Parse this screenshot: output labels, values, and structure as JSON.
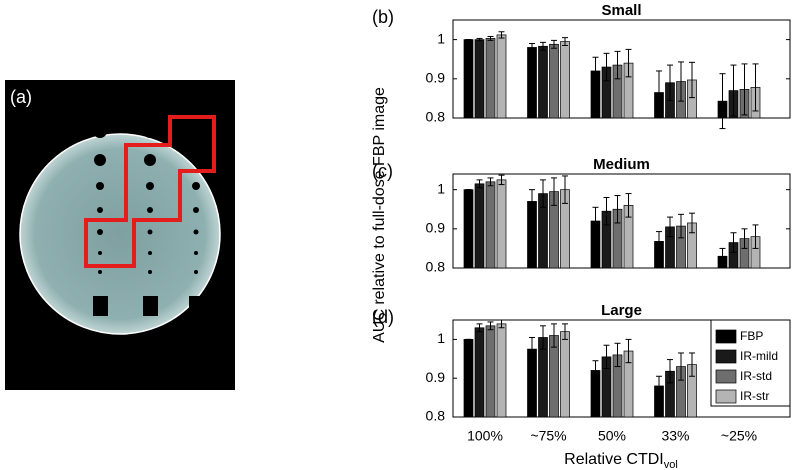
{
  "figure": {
    "panel_a_label": "(a)",
    "ylabel": "AUC relative to full-dose FBP image",
    "xlabel": "Relative CTDI",
    "xlabel_sub": "vol"
  },
  "chart_data": [
    {
      "type": "bar",
      "label": "(b)",
      "title": "Small",
      "categories": [
        null,
        null,
        null,
        null,
        null
      ],
      "ylim": [
        0.8,
        1.05
      ],
      "yticks": [
        0.8,
        0.9,
        1
      ],
      "series": [
        {
          "name": "FBP",
          "color": "#000000",
          "values": [
            1.0,
            0.98,
            0.92,
            0.865,
            0.843
          ],
          "errors": [
            0,
            0.01,
            0.035,
            0.055,
            0.07
          ]
        },
        {
          "name": "IR-mild",
          "color": "#1a1a1a",
          "values": [
            1.0,
            0.983,
            0.93,
            0.89,
            0.87
          ],
          "errors": [
            0.003,
            0.01,
            0.035,
            0.045,
            0.065
          ]
        },
        {
          "name": "IR-std",
          "color": "#6e6e6e",
          "values": [
            1.003,
            0.988,
            0.935,
            0.893,
            0.873
          ],
          "errors": [
            0.005,
            0.01,
            0.035,
            0.05,
            0.065
          ]
        },
        {
          "name": "IR-str",
          "color": "#b4b4b4",
          "values": [
            1.012,
            0.995,
            0.94,
            0.897,
            0.878
          ],
          "errors": [
            0.008,
            0.01,
            0.035,
            0.045,
            0.06
          ]
        }
      ]
    },
    {
      "type": "bar",
      "label": "(c)",
      "title": "Medium",
      "categories": [
        null,
        null,
        null,
        null,
        null
      ],
      "ylim": [
        0.8,
        1.04
      ],
      "yticks": [
        0.8,
        0.9,
        1
      ],
      "series": [
        {
          "name": "FBP",
          "color": "#000000",
          "values": [
            1.0,
            0.97,
            0.92,
            0.868,
            0.83
          ],
          "errors": [
            0,
            0.03,
            0.035,
            0.025,
            0.02
          ]
        },
        {
          "name": "IR-mild",
          "color": "#1a1a1a",
          "values": [
            1.015,
            0.99,
            0.945,
            0.905,
            0.865
          ],
          "errors": [
            0.01,
            0.035,
            0.035,
            0.025,
            0.025
          ]
        },
        {
          "name": "IR-std",
          "color": "#6e6e6e",
          "values": [
            1.02,
            0.995,
            0.95,
            0.907,
            0.875
          ],
          "errors": [
            0.01,
            0.035,
            0.035,
            0.03,
            0.025
          ]
        },
        {
          "name": "IR-str",
          "color": "#b4b4b4",
          "values": [
            1.025,
            1.0,
            0.96,
            0.915,
            0.88
          ],
          "errors": [
            0.012,
            0.035,
            0.03,
            0.025,
            0.03
          ]
        }
      ]
    },
    {
      "type": "bar",
      "label": "(d)",
      "title": "Large",
      "categories": [
        "100%",
        "~75%",
        "50%",
        "33%",
        "~25%"
      ],
      "ylim": [
        0.8,
        1.05
      ],
      "yticks": [
        0.8,
        0.9,
        1
      ],
      "legend": "right",
      "series": [
        {
          "name": "FBP",
          "color": "#000000",
          "values": [
            1.0,
            0.975,
            0.92,
            0.88,
            null
          ],
          "errors": [
            0,
            0.03,
            0.025,
            0.025,
            null
          ]
        },
        {
          "name": "IR-mild",
          "color": "#1a1a1a",
          "values": [
            1.03,
            1.005,
            0.955,
            0.918,
            null
          ],
          "errors": [
            0.01,
            0.03,
            0.03,
            0.03,
            null
          ]
        },
        {
          "name": "IR-std",
          "color": "#6e6e6e",
          "values": [
            1.035,
            1.01,
            0.96,
            0.93,
            null
          ],
          "errors": [
            0.01,
            0.03,
            0.03,
            0.035,
            null
          ]
        },
        {
          "name": "IR-str",
          "color": "#b4b4b4",
          "values": [
            1.04,
            1.02,
            0.97,
            0.935,
            null
          ],
          "errors": [
            0.01,
            0.02,
            0.03,
            0.03,
            null
          ]
        }
      ]
    }
  ]
}
